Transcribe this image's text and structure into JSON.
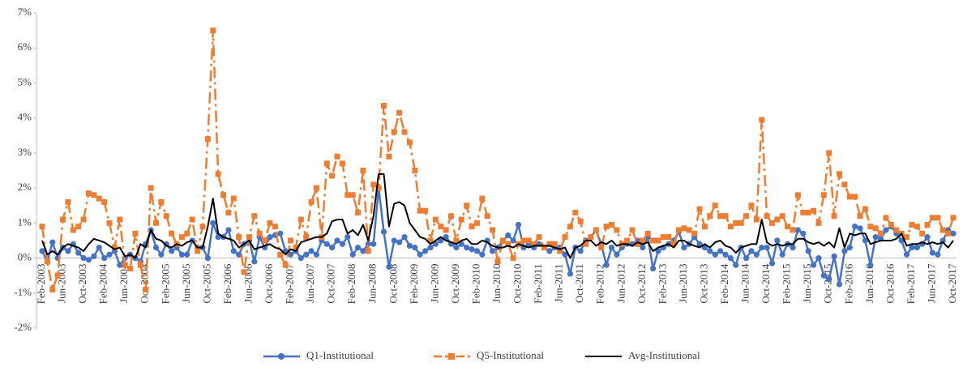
{
  "chart_data": {
    "type": "line",
    "categories": [
      "Feb-2003",
      null,
      null,
      null,
      "Jun-2003",
      null,
      null,
      null,
      "Oct-2003",
      null,
      null,
      null,
      "Feb-2004",
      null,
      null,
      null,
      "Jun-2004",
      null,
      null,
      null,
      "Oct-2004",
      null,
      null,
      null,
      "Feb-2005",
      null,
      null,
      null,
      "Jun-2005",
      null,
      null,
      null,
      "Oct-2005",
      null,
      null,
      null,
      "Feb-2006",
      null,
      null,
      null,
      "Jun-2006",
      null,
      null,
      null,
      "Oct-2006",
      null,
      null,
      null,
      "Feb-2007",
      null,
      null,
      null,
      "Jun-2007",
      null,
      null,
      null,
      "Oct-2007",
      null,
      null,
      null,
      "Feb-2008",
      null,
      null,
      null,
      "Jun-2008",
      null,
      null,
      null,
      "Oct-2008",
      null,
      null,
      null,
      "Feb-2009",
      null,
      null,
      null,
      "Jun-2009",
      null,
      null,
      null,
      "Oct-2009",
      null,
      null,
      null,
      "Feb-2010",
      null,
      null,
      null,
      "Jun-2010",
      null,
      null,
      null,
      "Oct-2010",
      null,
      null,
      null,
      "Feb-2011",
      null,
      null,
      null,
      "Jun-2011",
      null,
      null,
      null,
      "Oct-2011",
      null,
      null,
      null,
      "Feb-2012",
      null,
      null,
      null,
      "Jun-2012",
      null,
      null,
      null,
      "Oct-2012",
      null,
      null,
      null,
      "Feb-2013",
      null,
      null,
      null,
      "Jun-2013",
      null,
      null,
      null,
      "Oct-2013",
      null,
      null,
      null,
      "Feb-2014",
      null,
      null,
      null,
      "Jun-2014",
      null,
      null,
      null,
      "Oct-2014",
      null,
      null,
      null,
      "Feb-2015",
      null,
      null,
      null,
      "Jun-2015",
      null,
      null,
      null,
      "Oct-2015",
      null,
      null,
      null,
      "Feb-2016",
      null,
      null,
      null,
      "Jun-2016",
      null,
      null,
      null,
      "Oct-2016",
      null,
      null,
      null,
      "Feb-2017",
      null,
      null,
      null,
      "Jun-2017",
      null,
      null,
      null,
      "Oct-2017"
    ],
    "series": [
      {
        "name": "Q1-Institutional",
        "color": "#4472c4",
        "marker": "circle",
        "dashed": false,
        "values": [
          0.2,
          -0.1,
          0.45,
          0.0,
          0.3,
          0.2,
          0.4,
          0.15,
          0.0,
          -0.05,
          0.05,
          0.3,
          0.0,
          0.1,
          0.2,
          -0.2,
          0.0,
          0.1,
          0.0,
          -0.1,
          0.4,
          0.8,
          0.3,
          0.1,
          0.4,
          0.2,
          0.3,
          0.1,
          0.1,
          0.5,
          0.3,
          0.3,
          0.0,
          1.0,
          0.6,
          0.6,
          0.8,
          0.2,
          0.1,
          0.4,
          0.5,
          -0.1,
          0.6,
          0.3,
          0.6,
          0.65,
          0.7,
          0.2,
          0.1,
          0.2,
          0.0,
          0.1,
          0.2,
          0.1,
          0.5,
          0.4,
          0.3,
          0.5,
          0.4,
          0.6,
          0.1,
          0.3,
          0.2,
          0.4,
          0.4,
          2.0,
          0.75,
          -0.25,
          0.5,
          0.45,
          0.6,
          0.35,
          0.3,
          0.1,
          0.2,
          0.3,
          0.4,
          0.5,
          0.6,
          0.4,
          0.3,
          0.4,
          0.3,
          0.25,
          0.2,
          0.1,
          0.5,
          0.2,
          0.3,
          0.5,
          0.65,
          0.5,
          0.95,
          0.3,
          0.4,
          0.3,
          0.4,
          0.3,
          0.2,
          0.3,
          0.3,
          0.1,
          -0.45,
          0.3,
          0.2,
          0.5,
          0.6,
          0.8,
          0.4,
          -0.2,
          0.3,
          0.1,
          0.3,
          0.4,
          0.4,
          0.5,
          0.3,
          0.6,
          -0.3,
          0.2,
          0.3,
          0.4,
          0.5,
          0.75,
          0.3,
          0.4,
          0.6,
          0.4,
          0.3,
          0.2,
          0.1,
          0.2,
          0.1,
          0.0,
          -0.2,
          0.3,
          0.0,
          0.2,
          0.1,
          0.3,
          0.3,
          -0.15,
          0.5,
          0.1,
          0.4,
          0.3,
          0.8,
          0.7,
          0.2,
          -0.2,
          0.0,
          -0.5,
          -0.6,
          0.05,
          -0.75,
          0.2,
          0.3,
          0.9,
          0.85,
          0.5,
          -0.2,
          0.6,
          0.55,
          0.8,
          0.9,
          0.7,
          0.5,
          0.1,
          0.3,
          0.3,
          0.4,
          0.6,
          0.15,
          0.1,
          0.5,
          0.8,
          0.7
        ]
      },
      {
        "name": "Q5-Institutional",
        "color": "#ed7d31",
        "marker": "square",
        "dashed": true,
        "values": [
          0.9,
          -0.1,
          -0.9,
          -0.5,
          1.1,
          1.6,
          0.8,
          0.9,
          1.1,
          1.85,
          1.8,
          1.7,
          1.6,
          1.0,
          0.3,
          1.1,
          -0.2,
          -0.3,
          0.7,
          -0.2,
          -0.9,
          2.0,
          1.0,
          1.6,
          1.2,
          0.7,
          0.4,
          0.6,
          0.7,
          1.1,
          0.2,
          0.9,
          3.4,
          6.5,
          2.4,
          1.8,
          1.3,
          1.7,
          0.6,
          -0.4,
          0.6,
          1.2,
          0.7,
          0.5,
          1.0,
          0.9,
          0.1,
          -0.2,
          0.5,
          0.3,
          1.1,
          0.6,
          1.6,
          2.0,
          0.6,
          2.7,
          2.35,
          2.9,
          2.7,
          1.8,
          1.8,
          1.3,
          2.5,
          0.2,
          2.1,
          2.0,
          4.35,
          2.9,
          3.6,
          4.15,
          3.6,
          3.3,
          2.5,
          1.35,
          1.35,
          0.5,
          1.1,
          0.9,
          0.8,
          1.2,
          0.5,
          1.1,
          1.5,
          0.9,
          1.0,
          1.7,
          1.2,
          0.8,
          -0.1,
          0.5,
          0.4,
          0.0,
          0.4,
          0.5,
          0.5,
          0.4,
          0.6,
          0.3,
          0.4,
          0.4,
          0.2,
          0.6,
          0.9,
          1.3,
          1.05,
          0.4,
          0.6,
          0.8,
          0.3,
          0.9,
          0.95,
          0.8,
          0.4,
          0.5,
          0.8,
          0.4,
          0.5,
          0.7,
          0.5,
          0.5,
          0.6,
          0.6,
          0.4,
          0.8,
          0.85,
          0.8,
          0.7,
          1.4,
          0.9,
          1.2,
          1.5,
          1.2,
          1.2,
          0.9,
          1.0,
          1.0,
          1.2,
          1.5,
          1.1,
          3.95,
          1.2,
          1.0,
          1.1,
          1.2,
          0.9,
          0.8,
          1.8,
          1.3,
          1.3,
          1.35,
          1.0,
          1.8,
          3.0,
          1.2,
          2.4,
          2.1,
          1.75,
          1.75,
          1.2,
          1.4,
          0.9,
          0.85,
          0.7,
          1.15,
          0.95,
          0.8,
          0.7,
          0.6,
          0.95,
          0.9,
          0.7,
          0.95,
          1.15,
          1.15,
          0.8,
          0.7,
          1.15
        ]
      },
      {
        "name": "Avg-Institutional",
        "color": "#000000",
        "marker": null,
        "dashed": false,
        "values": [
          0.5,
          0.1,
          0.2,
          0.1,
          0.3,
          0.4,
          0.35,
          0.3,
          0.2,
          0.4,
          0.55,
          0.5,
          0.45,
          0.35,
          0.25,
          0.3,
          0.05,
          0.1,
          0.0,
          0.4,
          0.3,
          0.8,
          0.55,
          0.5,
          0.35,
          0.3,
          0.4,
          0.35,
          0.45,
          0.5,
          0.3,
          0.3,
          0.9,
          1.7,
          0.7,
          0.6,
          0.55,
          0.5,
          0.3,
          0.4,
          0.5,
          0.25,
          0.3,
          0.35,
          0.4,
          0.3,
          0.25,
          0.1,
          0.25,
          0.2,
          0.45,
          0.5,
          0.55,
          0.6,
          0.6,
          0.7,
          1.05,
          1.1,
          1.1,
          0.7,
          0.8,
          0.65,
          0.95,
          0.5,
          1.2,
          2.4,
          2.4,
          0.9,
          1.55,
          1.6,
          1.5,
          1.0,
          0.8,
          0.6,
          0.55,
          0.4,
          0.5,
          0.6,
          0.5,
          0.45,
          0.4,
          0.5,
          0.55,
          0.4,
          0.4,
          0.5,
          0.45,
          0.35,
          0.3,
          0.3,
          0.35,
          0.3,
          0.4,
          0.35,
          0.3,
          0.35,
          0.35,
          0.35,
          0.35,
          0.3,
          0.25,
          0.3,
          0.0,
          0.3,
          0.35,
          0.5,
          0.5,
          0.35,
          0.45,
          0.4,
          0.5,
          0.35,
          0.4,
          0.4,
          0.35,
          0.45,
          0.4,
          0.45,
          0.2,
          0.3,
          0.35,
          0.4,
          0.3,
          0.5,
          0.5,
          0.4,
          0.35,
          0.3,
          0.4,
          0.3,
          0.45,
          0.5,
          0.35,
          0.3,
          0.15,
          0.3,
          0.35,
          0.4,
          0.4,
          1.1,
          0.45,
          0.35,
          0.4,
          0.35,
          0.4,
          0.4,
          0.55,
          0.55,
          0.45,
          0.4,
          0.45,
          0.35,
          0.45,
          0.3,
          0.85,
          0.3,
          0.7,
          0.65,
          0.7,
          0.7,
          0.4,
          0.45,
          0.5,
          0.5,
          0.5,
          0.55,
          0.7,
          0.35,
          0.4,
          0.4,
          0.45,
          0.4,
          0.45,
          0.4,
          0.45,
          0.3,
          0.5
        ]
      }
    ],
    "ylim": [
      -2,
      7
    ],
    "yticks": [
      {
        "value": -2,
        "label": "-2%"
      },
      {
        "value": -1,
        "label": "-1%"
      },
      {
        "value": 0,
        "label": "0%"
      },
      {
        "value": 1,
        "label": "1%"
      },
      {
        "value": 2,
        "label": "2%"
      },
      {
        "value": 3,
        "label": "3%"
      },
      {
        "value": 4,
        "label": "4%"
      },
      {
        "value": 5,
        "label": "5%"
      },
      {
        "value": 6,
        "label": "6%"
      },
      {
        "value": 7,
        "label": "7%"
      }
    ],
    "legend": "bottom"
  }
}
